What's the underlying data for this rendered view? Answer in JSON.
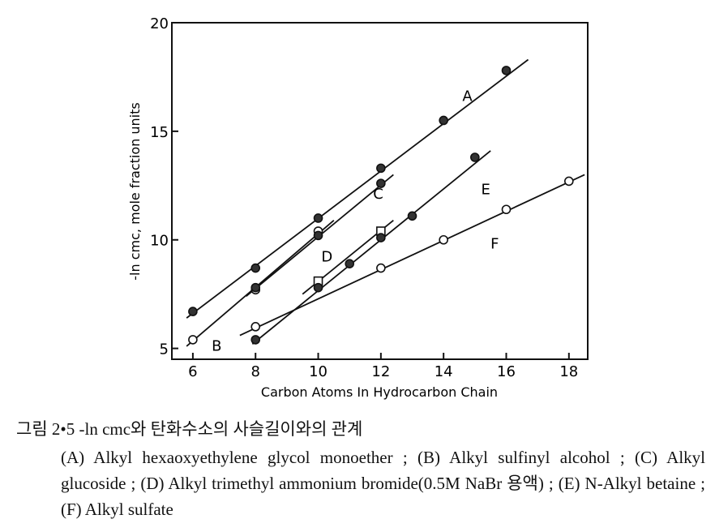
{
  "chart_data": {
    "type": "line",
    "xlabel": "Carbon Atoms In Hydrocarbon Chain",
    "ylabel": "-ln cmc, mole fraction units",
    "xlim": [
      5.33,
      18.6
    ],
    "ylim": [
      4.5,
      20
    ],
    "xticks": [
      6,
      8,
      10,
      12,
      14,
      16,
      18
    ],
    "yticks": [
      5,
      10,
      15,
      20
    ],
    "grid": false,
    "series": [
      {
        "name": "A",
        "marker": "filled-circle",
        "x": [
          6,
          8,
          10,
          12,
          14,
          16
        ],
        "y": [
          6.7,
          8.7,
          11.0,
          13.3,
          15.5,
          17.8
        ],
        "line": [
          [
            5.8,
            6.4
          ],
          [
            16.7,
            18.3
          ]
        ]
      },
      {
        "name": "B",
        "marker": "open-circle",
        "x": [
          6,
          8,
          10
        ],
        "y": [
          5.4,
          7.7,
          10.4
        ],
        "line": [
          [
            5.8,
            5.1
          ],
          [
            10.5,
            10.9
          ]
        ]
      },
      {
        "name": "C",
        "marker": "filled-circle",
        "x": [
          8,
          10,
          12
        ],
        "y": [
          7.8,
          10.2,
          12.6
        ],
        "line": [
          [
            7.7,
            7.4
          ],
          [
            12.4,
            13.0
          ]
        ]
      },
      {
        "name": "D",
        "marker": "open-square",
        "x": [
          10,
          12
        ],
        "y": [
          8.1,
          10.4
        ],
        "line": [
          [
            9.5,
            7.5
          ],
          [
            12.4,
            10.9
          ]
        ]
      },
      {
        "name": "E",
        "marker": "filled-circle",
        "x": [
          8,
          10,
          11,
          12,
          13,
          15
        ],
        "y": [
          5.4,
          7.8,
          8.9,
          10.1,
          11.1,
          13.8
        ],
        "line": [
          [
            7.9,
            5.2
          ],
          [
            15.5,
            14.1
          ]
        ]
      },
      {
        "name": "F",
        "marker": "open-circle",
        "x": [
          8,
          12,
          14,
          16,
          18
        ],
        "y": [
          6.0,
          8.7,
          10.0,
          11.4,
          12.7
        ],
        "line": [
          [
            7.5,
            5.6
          ],
          [
            18.5,
            13.0
          ]
        ]
      }
    ]
  },
  "caption": {
    "title": "그림 2•5 -ln cmc와 탄화수소의 사슬길이와의 관계",
    "body": "(A) Alkyl hexaoxyethylene glycol monoether ; (B) Alkyl sulfinyl alcohol ; (C) Alkyl glucoside ; (D) Alkyl trimethyl ammonium bromide(0.5M NaBr 용액) ; (E) N-Alkyl betaine ; (F) Alkyl sulfate"
  }
}
